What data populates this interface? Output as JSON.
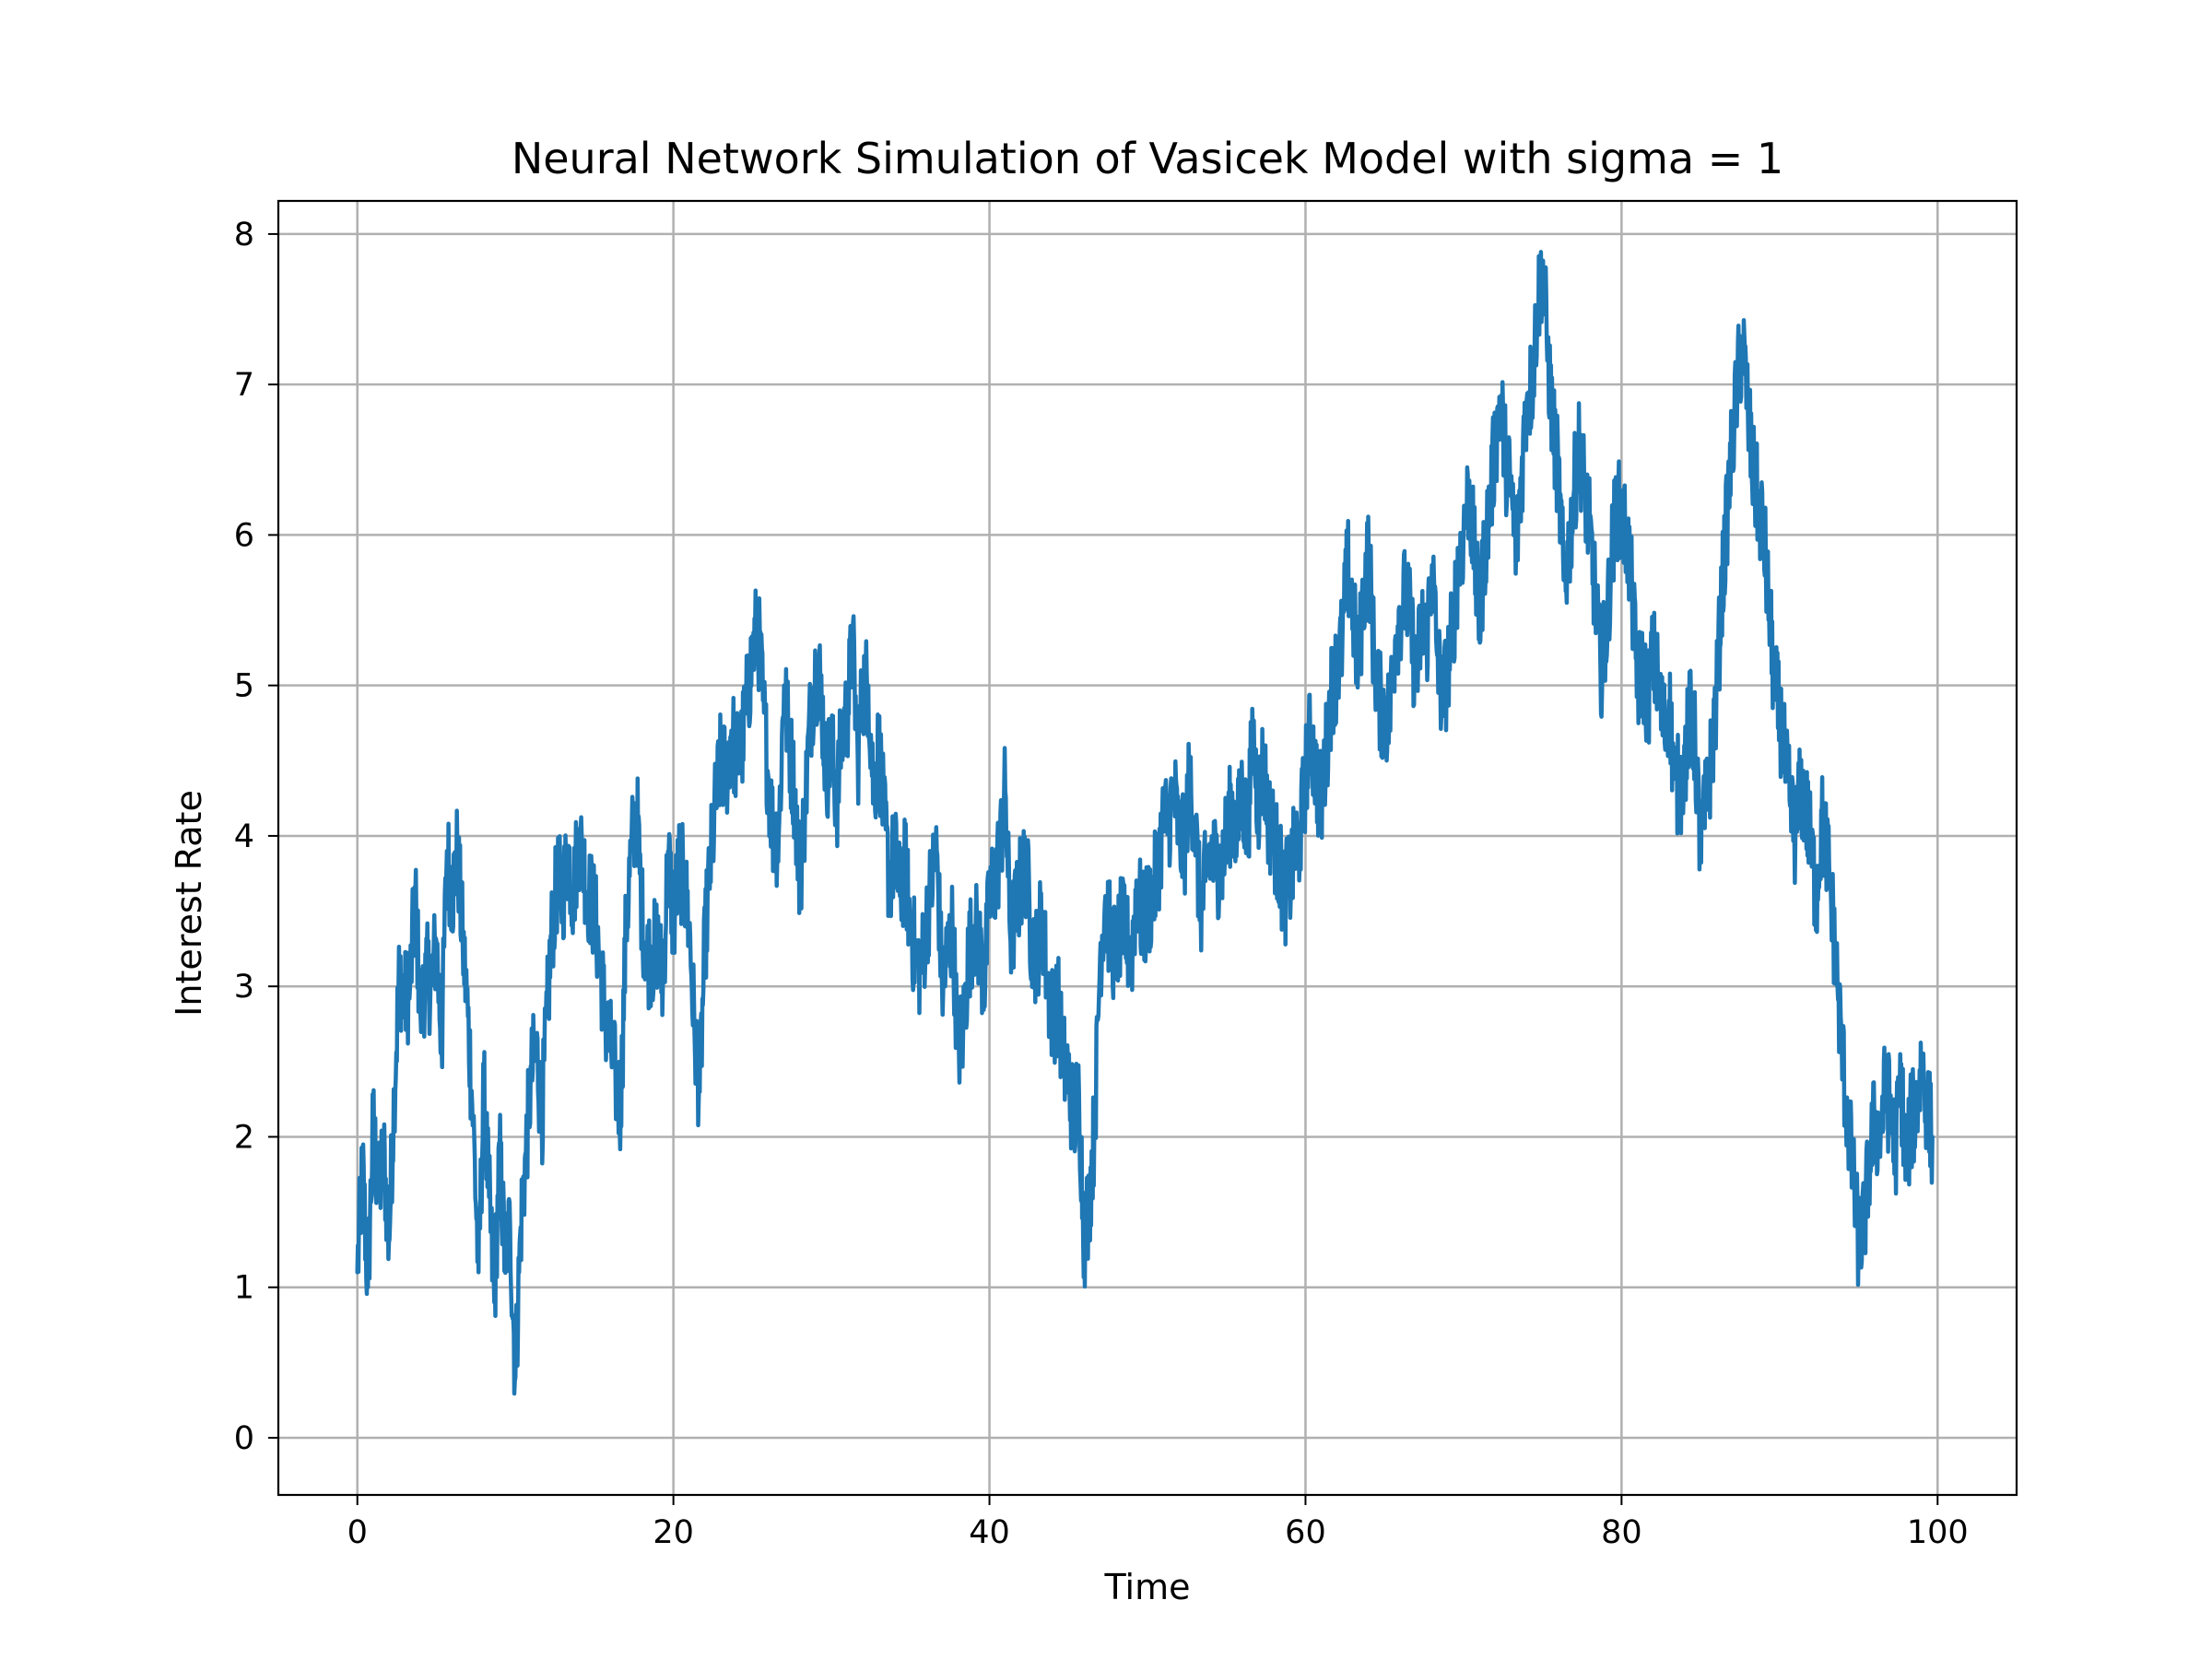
{
  "chart_data": {
    "type": "line",
    "title": "Neural Network Simulation of Vasicek Model with sigma = 1",
    "xlabel": "Time",
    "ylabel": "Interest Rate",
    "xlim": [
      -5,
      105
    ],
    "ylim": [
      -0.38,
      8.22
    ],
    "x_ticks": [
      0,
      20,
      40,
      60,
      80,
      100
    ],
    "y_ticks": [
      0,
      1,
      2,
      3,
      4,
      5,
      6,
      7,
      8
    ],
    "grid": true,
    "legend": "none",
    "color": "#1f77b4",
    "x_step": 1,
    "series": [
      {
        "values": [
          1.1,
          1.8,
          1.0,
          2.1,
          1.6,
          1.9,
          1.3,
          2.3,
          3.1,
          2.9,
          3.0,
          3.6,
          2.8,
          3.1,
          3.0,
          3.3,
          2.6,
          3.9,
          3.6,
          3.9,
          3.3,
          2.8,
          2.1,
          1.1,
          2.3,
          1.6,
          0.9,
          1.9,
          1.2,
          1.4,
          0.4,
          1.4,
          1.9,
          2.4,
          2.6,
          2.1,
          2.8,
          3.4,
          3.7,
          3.6,
          3.9,
          3.6,
          4.0,
          3.8,
          3.6,
          3.5,
          3.2,
          2.8,
          2.6,
          2.4,
          2.2,
          3.4,
          3.9,
          4.2,
          3.5,
          3.2,
          3.2,
          3.3,
          3.0,
          3.9,
          3.4,
          3.8,
          3.7,
          3.4,
          2.7,
          2.3,
          3.3,
          3.8,
          4.2,
          4.5,
          4.4,
          4.7,
          4.5,
          4.6,
          4.9,
          5.2,
          5.4,
          4.9,
          4.4,
          4.0,
          4.0,
          5.0,
          4.6,
          4.3,
          3.7,
          4.2,
          4.8,
          5.1,
          5.0,
          4.4,
          4.6,
          4.2,
          4.7,
          4.8,
          5.3,
          4.5,
          5.0,
          5.0,
          4.3,
          4.6,
          4.1,
          3.7,
          3.9,
          3.6,
          3.8,
          3.4,
          3.2,
          3.1,
          3.4,
          3.7,
          3.9,
          3.0,
          3.2,
          3.4,
          2.6,
          2.7,
          3.2,
          3.4,
          3.3,
          3.0,
          3.6,
          3.7,
          3.9,
          4.3,
          3.3,
          3.5,
          3.7,
          3.8,
          3.3,
          3.2,
          3.5,
          3.0,
          2.8,
          2.9,
          2.5,
          2.4,
          2.1,
          2.3,
          1.3,
          1.6,
          2.1,
          3.2,
          3.6,
          3.3,
          3.2,
          3.4,
          3.3,
          3.2,
          3.7,
          3.4,
          3.5,
          3.6,
          3.8,
          4.1,
          4.1,
          4.3,
          4.0,
          3.9,
          4.4,
          4.1,
          3.5,
          3.7,
          3.9,
          3.8,
          3.8,
          4.0,
          4.2,
          4.0,
          4.3,
          4.0,
          4.7,
          4.2,
          4.5,
          4.1,
          4.0,
          3.8,
          3.6,
          3.7,
          3.9,
          4.0,
          4.4,
          4.7,
          4.4,
          4.2,
          4.6,
          5.0,
          5.1,
          5.3,
          5.8,
          5.5,
          5.1,
          5.6,
          5.9,
          5.2,
          4.9,
          4.8,
          4.8,
          5.3,
          5.5,
          5.6,
          5.4,
          5.0,
          5.4,
          5.3,
          5.8,
          5.2,
          4.9,
          5.1,
          5.4,
          5.8,
          6.0,
          6.3,
          5.9,
          5.4,
          5.9,
          6.2,
          6.6,
          6.9,
          6.5,
          6.3,
          5.9,
          6.4,
          6.9,
          7.0,
          7.5,
          7.8,
          7.2,
          6.7,
          6.4,
          5.7,
          5.9,
          6.3,
          6.6,
          6.3,
          6.0,
          5.6,
          5.1,
          5.3,
          5.8,
          6.2,
          6.1,
          6.0,
          5.6,
          5.0,
          5.1,
          4.9,
          5.2,
          5.0,
          4.7,
          4.9,
          4.4,
          4.3,
          4.5,
          4.8,
          4.6,
          3.9,
          4.2,
          4.5,
          4.9,
          5.6,
          6.1,
          6.6,
          7.0,
          7.3,
          6.8,
          6.4,
          6.2,
          6.0,
          5.5,
          5.0,
          4.8,
          4.5,
          4.2,
          4.0,
          4.3,
          4.2,
          3.9,
          3.6,
          4.1,
          3.9,
          3.5,
          3.0,
          2.5,
          2.1,
          1.7,
          1.3,
          1.4,
          1.8,
          2.1,
          2.0,
          2.3,
          2.2,
          1.9,
          2.4,
          1.8,
          2.1,
          2.2,
          2.5,
          2.2,
          2.0
        ]
      }
    ]
  }
}
